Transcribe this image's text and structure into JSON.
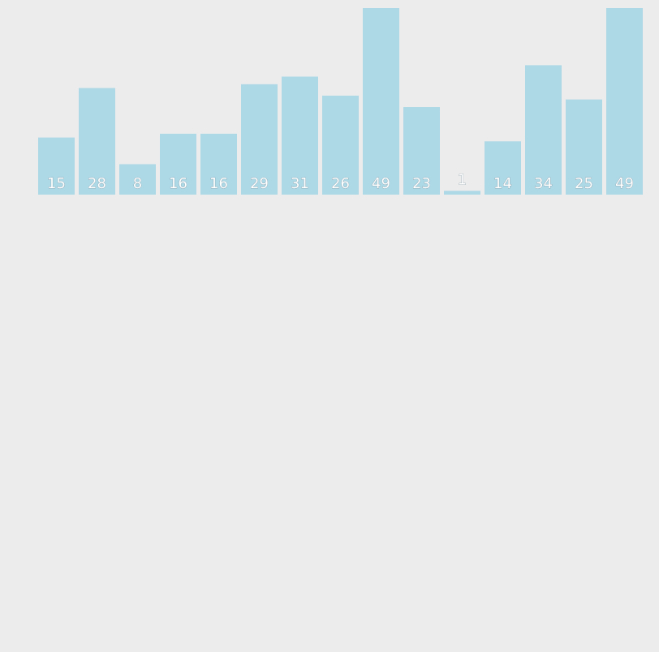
{
  "chart_data": {
    "type": "bar",
    "values": [
      15,
      28,
      8,
      16,
      16,
      29,
      31,
      26,
      49,
      23,
      1,
      14,
      34,
      25,
      49
    ],
    "data_labels": [
      "15",
      "28",
      "8",
      "16",
      "16",
      "29",
      "31",
      "26",
      "49",
      "23",
      "1",
      "14",
      "34",
      "25",
      "49"
    ],
    "ylim": [
      0,
      49
    ],
    "grid": false,
    "legend": "none",
    "colors": {
      "bar": "#add8e6",
      "background": "#ececec",
      "label_fill": "#ffffff",
      "label_stroke": "#7a8f99"
    }
  }
}
